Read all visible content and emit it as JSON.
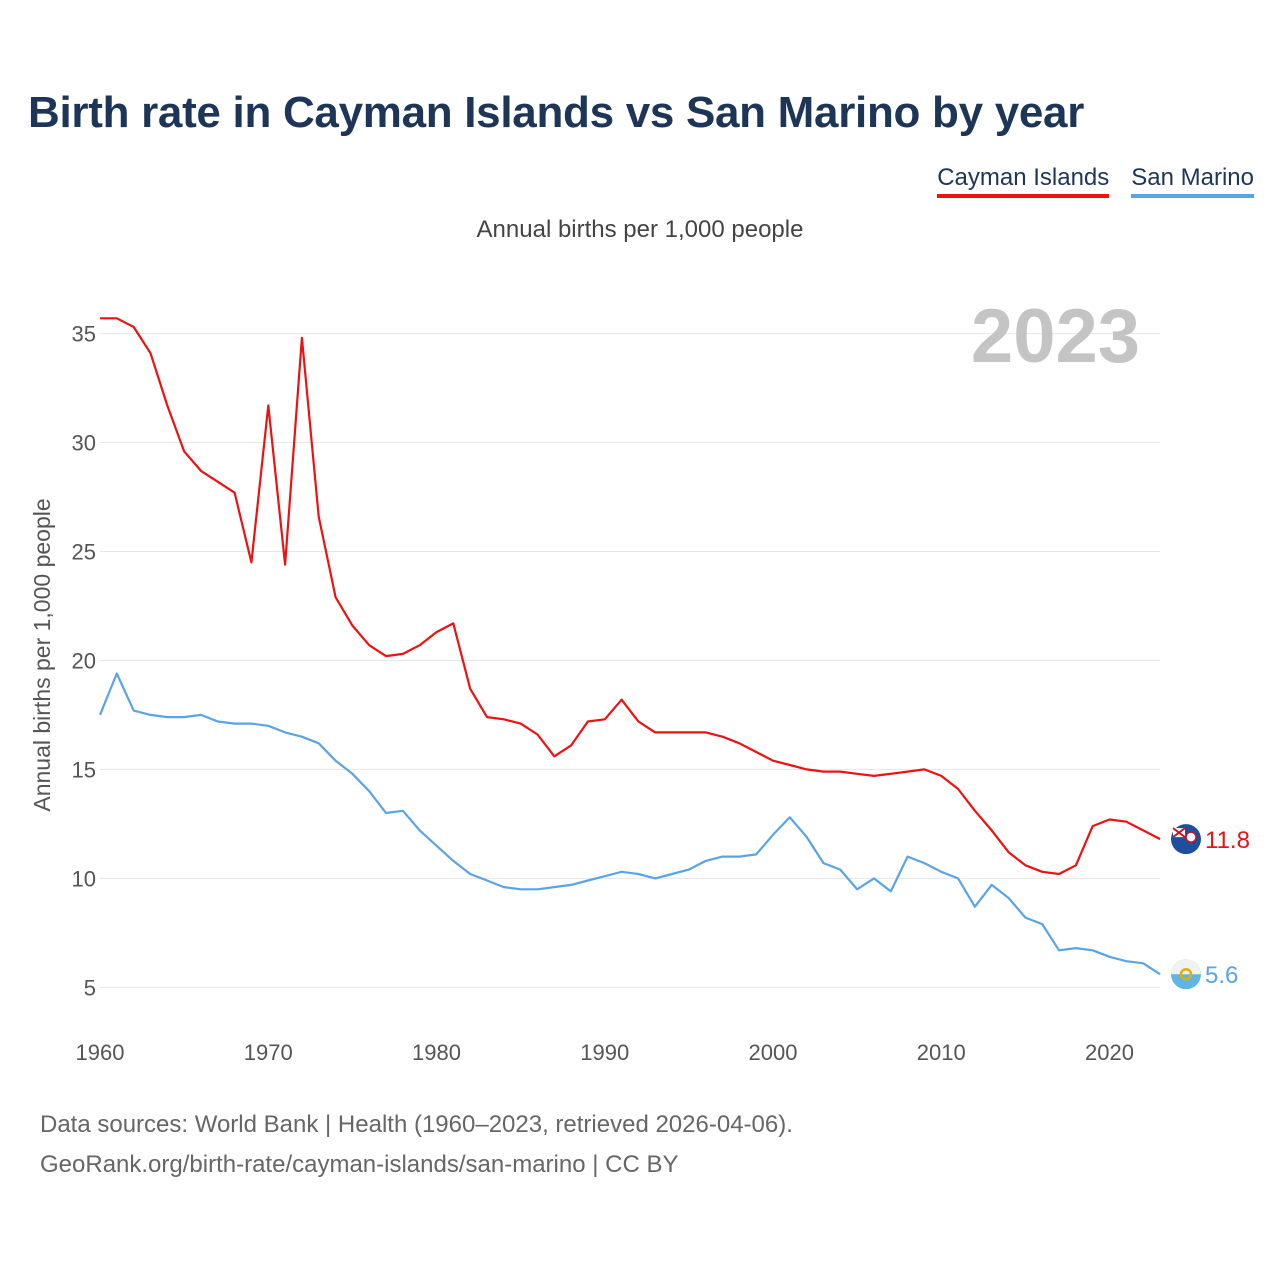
{
  "title": "Birth rate in Cayman Islands vs San Marino by year",
  "subtitle": "Annual births per 1,000 people",
  "legend": [
    {
      "label": "Cayman Islands",
      "color": "#ee1111"
    },
    {
      "label": "San Marino",
      "color": "#5aa4e6"
    }
  ],
  "source_line1": "Data sources: World Bank | Health (1960–2023, retrieved 2026-04-06).",
  "source_line2": "GeoRank.org/birth-rate/cayman-islands/san-marino | CC BY",
  "chart_data": {
    "type": "line",
    "title": "Birth rate in Cayman Islands vs San Marino by year",
    "ylabel": "Annual births per 1,000 people",
    "xlabel": "",
    "highlight_year": "2023",
    "xlim": [
      1960,
      2023
    ],
    "ylim": [
      3.5,
      37
    ],
    "xticks": [
      1960,
      1970,
      1980,
      1990,
      2000,
      2010,
      2020
    ],
    "yticks": [
      5,
      10,
      15,
      20,
      25,
      30,
      35
    ],
    "x": [
      1960,
      1961,
      1962,
      1963,
      1964,
      1965,
      1966,
      1967,
      1968,
      1969,
      1970,
      1971,
      1972,
      1973,
      1974,
      1975,
      1976,
      1977,
      1978,
      1979,
      1980,
      1981,
      1982,
      1983,
      1984,
      1985,
      1986,
      1987,
      1988,
      1989,
      1990,
      1991,
      1992,
      1993,
      1994,
      1995,
      1996,
      1997,
      1998,
      1999,
      2000,
      2001,
      2002,
      2003,
      2004,
      2005,
      2006,
      2007,
      2008,
      2009,
      2010,
      2011,
      2012,
      2013,
      2014,
      2015,
      2016,
      2017,
      2018,
      2019,
      2020,
      2021,
      2022,
      2023
    ],
    "series": [
      {
        "name": "Cayman Islands",
        "color": "#ee1111",
        "end_label": "11.8",
        "icon": "cayman-islands-flag-icon",
        "values": [
          35.7,
          35.7,
          35.3,
          34.1,
          31.7,
          29.6,
          28.7,
          28.2,
          27.7,
          24.5,
          31.7,
          24.4,
          34.8,
          26.6,
          22.9,
          21.6,
          20.7,
          20.2,
          20.3,
          20.7,
          21.3,
          21.7,
          18.7,
          17.4,
          17.3,
          17.1,
          16.6,
          15.6,
          16.1,
          17.2,
          17.3,
          18.2,
          17.2,
          16.7,
          16.7,
          16.7,
          16.7,
          16.5,
          16.2,
          15.8,
          15.4,
          15.2,
          15.0,
          14.9,
          14.9,
          14.8,
          14.7,
          14.8,
          14.9,
          15.0,
          14.7,
          14.1,
          13.1,
          12.2,
          11.2,
          10.6,
          10.3,
          10.2,
          10.6,
          12.4,
          12.7,
          12.6,
          12.2,
          11.8
        ]
      },
      {
        "name": "San Marino",
        "color": "#5aa4e6",
        "end_label": "5.6",
        "icon": "san-marino-flag-icon",
        "values": [
          17.5,
          19.4,
          17.7,
          17.5,
          17.4,
          17.4,
          17.5,
          17.2,
          17.1,
          17.1,
          17.0,
          16.7,
          16.5,
          16.2,
          15.4,
          14.8,
          14.0,
          13.0,
          13.1,
          12.2,
          11.5,
          10.8,
          10.2,
          9.9,
          9.6,
          9.5,
          9.5,
          9.6,
          9.7,
          9.9,
          10.1,
          10.3,
          10.2,
          10.0,
          10.2,
          10.4,
          10.8,
          11.0,
          11.0,
          11.1,
          12.0,
          12.8,
          11.9,
          10.7,
          10.4,
          9.5,
          10.0,
          9.4,
          11.0,
          10.7,
          10.3,
          10.0,
          8.7,
          9.7,
          9.1,
          8.2,
          7.9,
          6.7,
          6.8,
          6.7,
          6.4,
          6.2,
          6.1,
          5.6
        ]
      }
    ]
  }
}
